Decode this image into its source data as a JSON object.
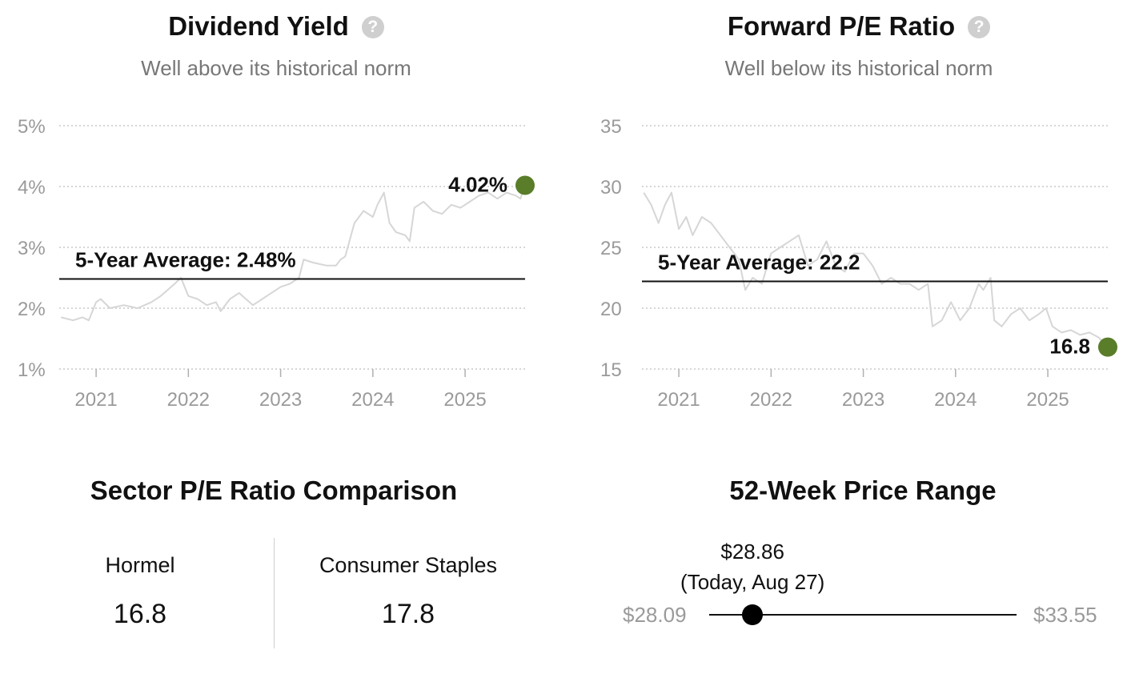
{
  "chart_data": [
    {
      "type": "line",
      "title": "Dividend Yield",
      "help_icon": "question-circle-icon",
      "subtitle": "Well above its historical norm",
      "y_ticks": [
        "5%",
        "4%",
        "3%",
        "2%",
        "1%"
      ],
      "y_tick_values": [
        5,
        4,
        3,
        2,
        1
      ],
      "x_ticks": [
        "2021",
        "2022",
        "2023",
        "2024",
        "2025"
      ],
      "ylim": [
        1,
        5
      ],
      "xlim": [
        2020.6,
        2025.65
      ],
      "average": {
        "label": "5-Year Average: 2.48%",
        "value": 2.48
      },
      "current": {
        "label": "4.02%",
        "value": 4.02,
        "x": 2025.65,
        "color": "#5a7d2a"
      },
      "series_color": "#d6d6d6",
      "x": [
        2020.62,
        2020.75,
        2020.85,
        2020.92,
        2021.0,
        2021.05,
        2021.15,
        2021.3,
        2021.45,
        2021.6,
        2021.7,
        2021.85,
        2021.92,
        2022.0,
        2022.1,
        2022.2,
        2022.3,
        2022.35,
        2022.45,
        2022.55,
        2022.7,
        2022.85,
        2023.0,
        2023.1,
        2023.2,
        2023.25,
        2023.35,
        2023.5,
        2023.6,
        2023.65,
        2023.7,
        2023.8,
        2023.9,
        2024.0,
        2024.05,
        2024.12,
        2024.18,
        2024.25,
        2024.35,
        2024.4,
        2024.45,
        2024.55,
        2024.65,
        2024.75,
        2024.85,
        2024.95,
        2025.05,
        2025.15,
        2025.25,
        2025.35,
        2025.45,
        2025.55,
        2025.6,
        2025.65
      ],
      "values": [
        1.85,
        1.8,
        1.85,
        1.8,
        2.1,
        2.15,
        2.0,
        2.05,
        2.0,
        2.1,
        2.2,
        2.4,
        2.5,
        2.2,
        2.15,
        2.05,
        2.1,
        1.95,
        2.15,
        2.25,
        2.05,
        2.2,
        2.35,
        2.4,
        2.5,
        2.8,
        2.75,
        2.7,
        2.7,
        2.8,
        2.85,
        3.4,
        3.6,
        3.5,
        3.7,
        3.9,
        3.4,
        3.25,
        3.2,
        3.1,
        3.65,
        3.75,
        3.6,
        3.55,
        3.7,
        3.65,
        3.75,
        3.85,
        3.9,
        3.8,
        3.9,
        3.85,
        3.8,
        4.02
      ]
    },
    {
      "type": "line",
      "title": "Forward P/E Ratio",
      "help_icon": "question-circle-icon",
      "subtitle": "Well below its historical norm",
      "y_ticks": [
        "35",
        "30",
        "25",
        "20",
        "15"
      ],
      "y_tick_values": [
        35,
        30,
        25,
        20,
        15
      ],
      "x_ticks": [
        "2021",
        "2022",
        "2023",
        "2024",
        "2025"
      ],
      "ylim": [
        15,
        35
      ],
      "xlim": [
        2020.6,
        2025.65
      ],
      "average": {
        "label": "5-Year Average: 22.2",
        "value": 22.2
      },
      "current": {
        "label": "16.8",
        "value": 16.8,
        "x": 2025.65,
        "color": "#5a7d2a"
      },
      "series_color": "#d6d6d6",
      "x": [
        2020.62,
        2020.7,
        2020.78,
        2020.85,
        2020.92,
        2021.0,
        2021.08,
        2021.15,
        2021.25,
        2021.35,
        2021.45,
        2021.55,
        2021.65,
        2021.72,
        2021.8,
        2021.9,
        2022.0,
        2022.1,
        2022.2,
        2022.3,
        2022.4,
        2022.5,
        2022.6,
        2022.7,
        2022.8,
        2022.9,
        2023.0,
        2023.1,
        2023.2,
        2023.3,
        2023.4,
        2023.5,
        2023.6,
        2023.7,
        2023.75,
        2023.85,
        2023.95,
        2024.05,
        2024.15,
        2024.25,
        2024.3,
        2024.38,
        2024.42,
        2024.5,
        2024.6,
        2024.7,
        2024.8,
        2024.9,
        2024.98,
        2025.05,
        2025.15,
        2025.25,
        2025.35,
        2025.45,
        2025.55,
        2025.65
      ],
      "values": [
        29.5,
        28.5,
        27.0,
        28.5,
        29.5,
        26.5,
        27.5,
        26.0,
        27.5,
        27.0,
        26.0,
        25.0,
        24.0,
        21.5,
        22.5,
        22.0,
        24.5,
        25.0,
        25.5,
        26.0,
        23.5,
        24.0,
        25.5,
        23.5,
        23.0,
        24.5,
        24.5,
        23.5,
        22.0,
        22.5,
        22.0,
        22.0,
        21.5,
        22.0,
        18.5,
        19.0,
        20.5,
        19.0,
        20.0,
        22.0,
        21.5,
        22.5,
        19.0,
        18.5,
        19.5,
        20.0,
        19.0,
        19.5,
        20.0,
        18.5,
        18.0,
        18.2,
        17.8,
        18.0,
        17.6,
        16.8
      ]
    }
  ],
  "sector": {
    "title": "Sector P/E Ratio Comparison",
    "left_label": "Hormel",
    "left_value": "16.8",
    "right_label": "Consumer Staples",
    "right_value": "17.8"
  },
  "range": {
    "title": "52-Week Price Range",
    "low": "$28.09",
    "high": "$33.55",
    "current_price": "$28.86",
    "current_label": "(Today, Aug 27)",
    "low_value": 28.09,
    "high_value": 33.55,
    "current_value": 28.86
  }
}
